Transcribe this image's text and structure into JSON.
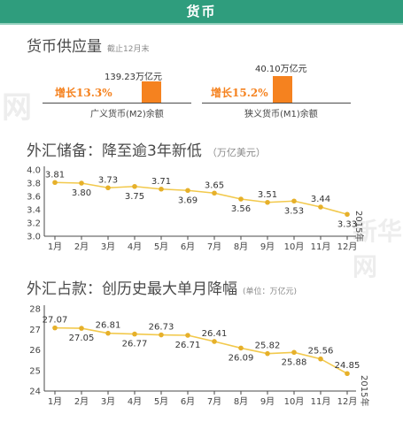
{
  "header": {
    "title": "货币"
  },
  "money_supply": {
    "title": "货币供应量",
    "note": "截止12月末",
    "m2": {
      "amount": "139.23万亿元",
      "growth": "增长13.3%",
      "label": "广义货币(M2)余额"
    },
    "m1": {
      "amount": "40.10万亿元",
      "growth": "增长15.2%",
      "label": "狭义货币(M1)余额"
    }
  },
  "watermarks": {
    "small": "网",
    "big": "新华网"
  },
  "colors": {
    "header_bg": "#2f9d7d",
    "accent": "#f5821f",
    "line": "#f2c94c",
    "marker": "#e6b02a",
    "text": "#4a4a4a"
  },
  "chart_data": [
    {
      "type": "line",
      "title": "外汇储备：降至逾3年新低",
      "subtitle": "（万亿美元）",
      "categories": [
        "1月",
        "2月",
        "3月",
        "4月",
        "5月",
        "6月",
        "7月",
        "8月",
        "9月",
        "10月",
        "11月",
        "12月"
      ],
      "values": [
        3.81,
        3.8,
        3.73,
        3.75,
        3.71,
        3.69,
        3.65,
        3.56,
        3.51,
        3.53,
        3.44,
        3.33
      ],
      "value_labels": [
        "3.81",
        "3.80",
        "3.73",
        "3.75",
        "3.71",
        "3.69",
        "3.65",
        "3.56",
        "3.51",
        "3.53",
        "3.44",
        "3.33"
      ],
      "label_pos": [
        "above",
        "below",
        "above",
        "below",
        "above",
        "below",
        "above",
        "below",
        "above",
        "below",
        "above",
        "below"
      ],
      "yticks": [
        "4.0",
        "3.8",
        "3.6",
        "3.4",
        "3.2",
        "3.0"
      ],
      "ylim": [
        3.0,
        4.0
      ],
      "year_label": "2015年",
      "grid": false
    },
    {
      "type": "line",
      "title": "外汇占款：创历史最大单月降幅",
      "subtitle": "(单位：万亿元)",
      "categories": [
        "1月",
        "2月",
        "3月",
        "4月",
        "5月",
        "6月",
        "7月",
        "8月",
        "9月",
        "10月",
        "11月",
        "12月"
      ],
      "values": [
        27.07,
        27.05,
        26.81,
        26.77,
        26.73,
        26.71,
        26.41,
        26.09,
        25.82,
        25.88,
        25.56,
        24.85
      ],
      "value_labels": [
        "27.07",
        "27.05",
        "26.81",
        "26.77",
        "26.73",
        "26.71",
        "26.41",
        "26.09",
        "25.82",
        "25.88",
        "25.56",
        "24.85"
      ],
      "label_pos": [
        "above",
        "below",
        "above",
        "below",
        "above",
        "below",
        "above",
        "below",
        "above",
        "below",
        "above",
        "above"
      ],
      "yticks": [
        "28",
        "27",
        "26",
        "25",
        "24"
      ],
      "ylim": [
        24,
        28
      ],
      "year_label": "2015年",
      "grid": false
    }
  ]
}
